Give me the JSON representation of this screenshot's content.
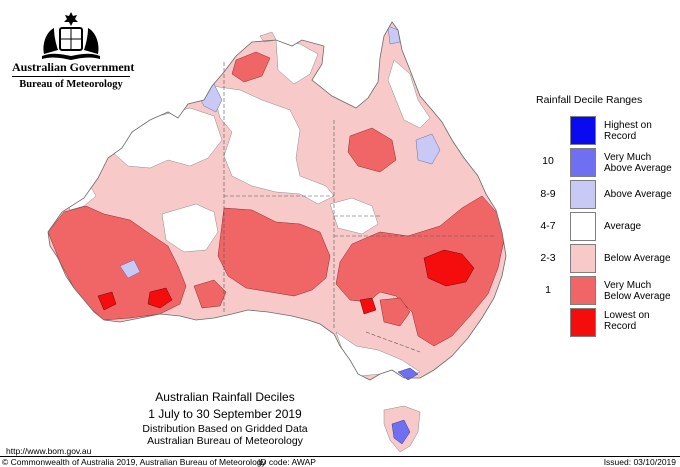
{
  "header": {
    "government": "Australian Government",
    "bureau": "Bureau of Meteorology"
  },
  "legend": {
    "title": "Rainfall Decile Ranges",
    "items": [
      {
        "label": "Highest on Record",
        "range": "",
        "color": "#0a0af0"
      },
      {
        "label": "Very Much Above Average",
        "range": "10",
        "color": "#6f6ff2"
      },
      {
        "label": "Above Average",
        "range": "8-9",
        "color": "#c9c9f6"
      },
      {
        "label": "Average",
        "range": "4-7",
        "color": "#ffffff"
      },
      {
        "label": "Below Average",
        "range": "2-3",
        "color": "#f8c9c9"
      },
      {
        "label": "Very Much Below Average",
        "range": "1",
        "color": "#f06666"
      },
      {
        "label": "Lowest on Record",
        "range": "",
        "color": "#f50d0d"
      }
    ]
  },
  "caption": {
    "title": "Australian Rainfall Deciles",
    "dates": "1 July to 30 September 2019",
    "basis": "Distribution Based on Gridded Data",
    "source": "Australian Bureau of Meteorology"
  },
  "footer": {
    "url": "http://www.bom.gov.au",
    "copyright": "© Commonwealth of Australia 2019, Australian Bureau of Meteorology",
    "id_code": "ID code: AWAP",
    "issued": "Issued: 03/10/2019"
  }
}
